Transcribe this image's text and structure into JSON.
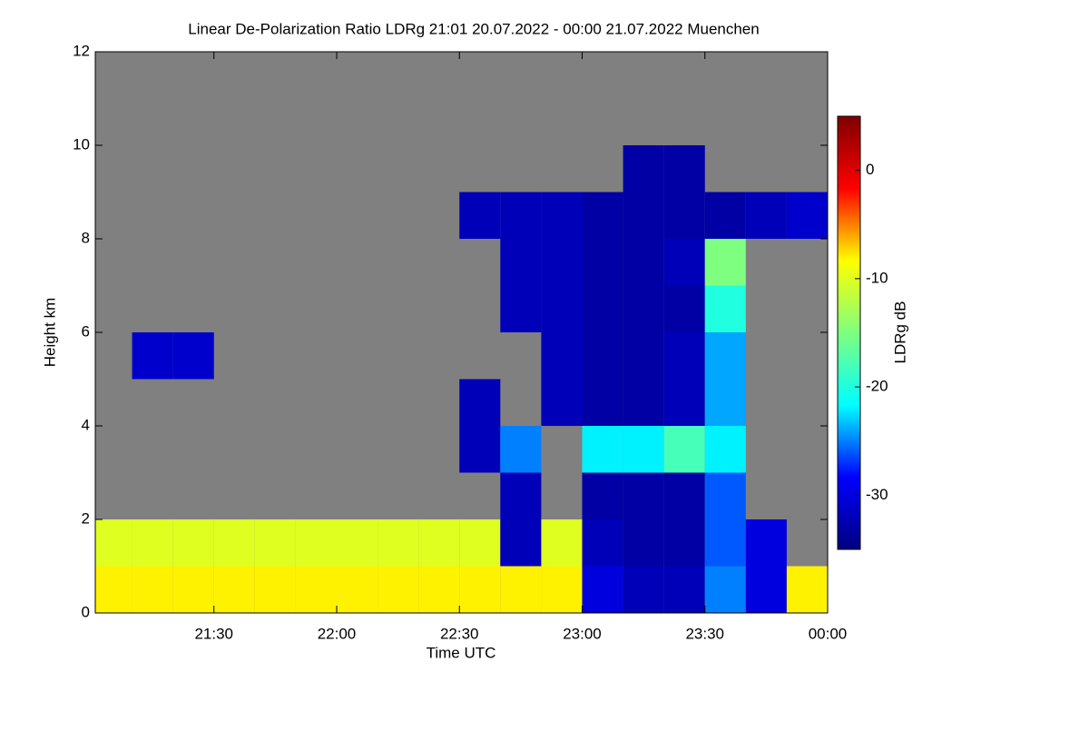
{
  "chart_data": {
    "type": "heatmap",
    "title": "Linear De-Polarization Ratio LDRg   21:01 20.07.2022 - 00:00 21.07.2022 Muenchen",
    "x_label": "Time UTC",
    "y_label": "Height km",
    "colorbar_label": "LDRg dB",
    "x": [
      21.0833,
      21.25,
      21.4167,
      21.5833,
      21.75,
      21.9167,
      22.0833,
      22.25,
      22.4167,
      22.5833,
      22.75,
      22.9167,
      23.0833,
      23.25,
      23.4167,
      23.5833,
      23.75,
      23.9167
    ],
    "y": [
      0.5,
      1.5,
      2.5,
      3.5,
      4.5,
      5.5,
      6.5,
      7.5,
      8.5,
      9.5,
      10.5,
      11.5
    ],
    "z": [
      [
        -8,
        -8,
        -8,
        -8,
        -8,
        -8,
        -8,
        -8,
        -8,
        -8,
        -8,
        -8,
        -30,
        -32,
        -32,
        -25,
        -30,
        -8
      ],
      [
        -10,
        -10,
        -10,
        -10,
        -10,
        -10,
        -10,
        -10,
        -10,
        -10,
        -32,
        -10,
        -32,
        -33,
        -33,
        -26,
        -30,
        null
      ],
      [
        null,
        null,
        null,
        null,
        null,
        null,
        null,
        null,
        null,
        null,
        -32,
        null,
        -33,
        -33,
        -33,
        -26,
        null,
        null
      ],
      [
        null,
        null,
        null,
        null,
        null,
        null,
        null,
        null,
        null,
        -32,
        -25,
        null,
        -22,
        -22,
        -18,
        -22,
        null,
        null
      ],
      [
        null,
        null,
        null,
        null,
        null,
        null,
        null,
        null,
        null,
        -32,
        null,
        -32,
        -33,
        -33,
        -32,
        -24,
        null,
        null
      ],
      [
        null,
        -31,
        -31,
        null,
        null,
        null,
        null,
        null,
        null,
        null,
        null,
        -32,
        -33,
        -33,
        -32,
        -24,
        null,
        null
      ],
      [
        null,
        null,
        null,
        null,
        null,
        null,
        null,
        null,
        null,
        null,
        -32,
        -32,
        -33,
        -33,
        -33,
        -20,
        null,
        null
      ],
      [
        null,
        null,
        null,
        null,
        null,
        null,
        null,
        null,
        null,
        null,
        -32,
        -32,
        -33,
        -33,
        -32,
        -15,
        null,
        null
      ],
      [
        null,
        null,
        null,
        null,
        null,
        null,
        null,
        null,
        null,
        -32,
        -32,
        -32,
        -33,
        -33,
        -33,
        -33,
        -32,
        -31
      ],
      [
        null,
        null,
        null,
        null,
        null,
        null,
        null,
        null,
        null,
        null,
        null,
        null,
        null,
        -33,
        -33,
        null,
        null,
        null
      ],
      [
        null,
        null,
        null,
        null,
        null,
        null,
        null,
        null,
        null,
        null,
        null,
        null,
        null,
        null,
        null,
        null,
        null,
        null
      ],
      [
        null,
        null,
        null,
        null,
        null,
        null,
        null,
        null,
        null,
        null,
        null,
        null,
        null,
        null,
        null,
        null,
        null,
        null
      ]
    ],
    "xlim": [
      21.0167,
      24
    ],
    "xticks": [
      {
        "value": 21.5,
        "label": "21:30"
      },
      {
        "value": 22,
        "label": "22:00"
      },
      {
        "value": 22.5,
        "label": "22:30"
      },
      {
        "value": 23,
        "label": "23:00"
      },
      {
        "value": 23.5,
        "label": "23:30"
      },
      {
        "value": 24,
        "label": "00:00"
      }
    ],
    "ylim": [
      0,
      12
    ],
    "yticks": [
      0,
      2,
      4,
      6,
      8,
      10,
      12
    ],
    "zlim": [
      -35,
      5
    ],
    "zticks": [
      0,
      -10,
      -20,
      -30
    ],
    "colormap": [
      "#00007f",
      "#0000ff",
      "#00ffff",
      "#7fff7f",
      "#ffff00",
      "#ff0000",
      "#7f0000"
    ],
    "background": "#808080"
  }
}
